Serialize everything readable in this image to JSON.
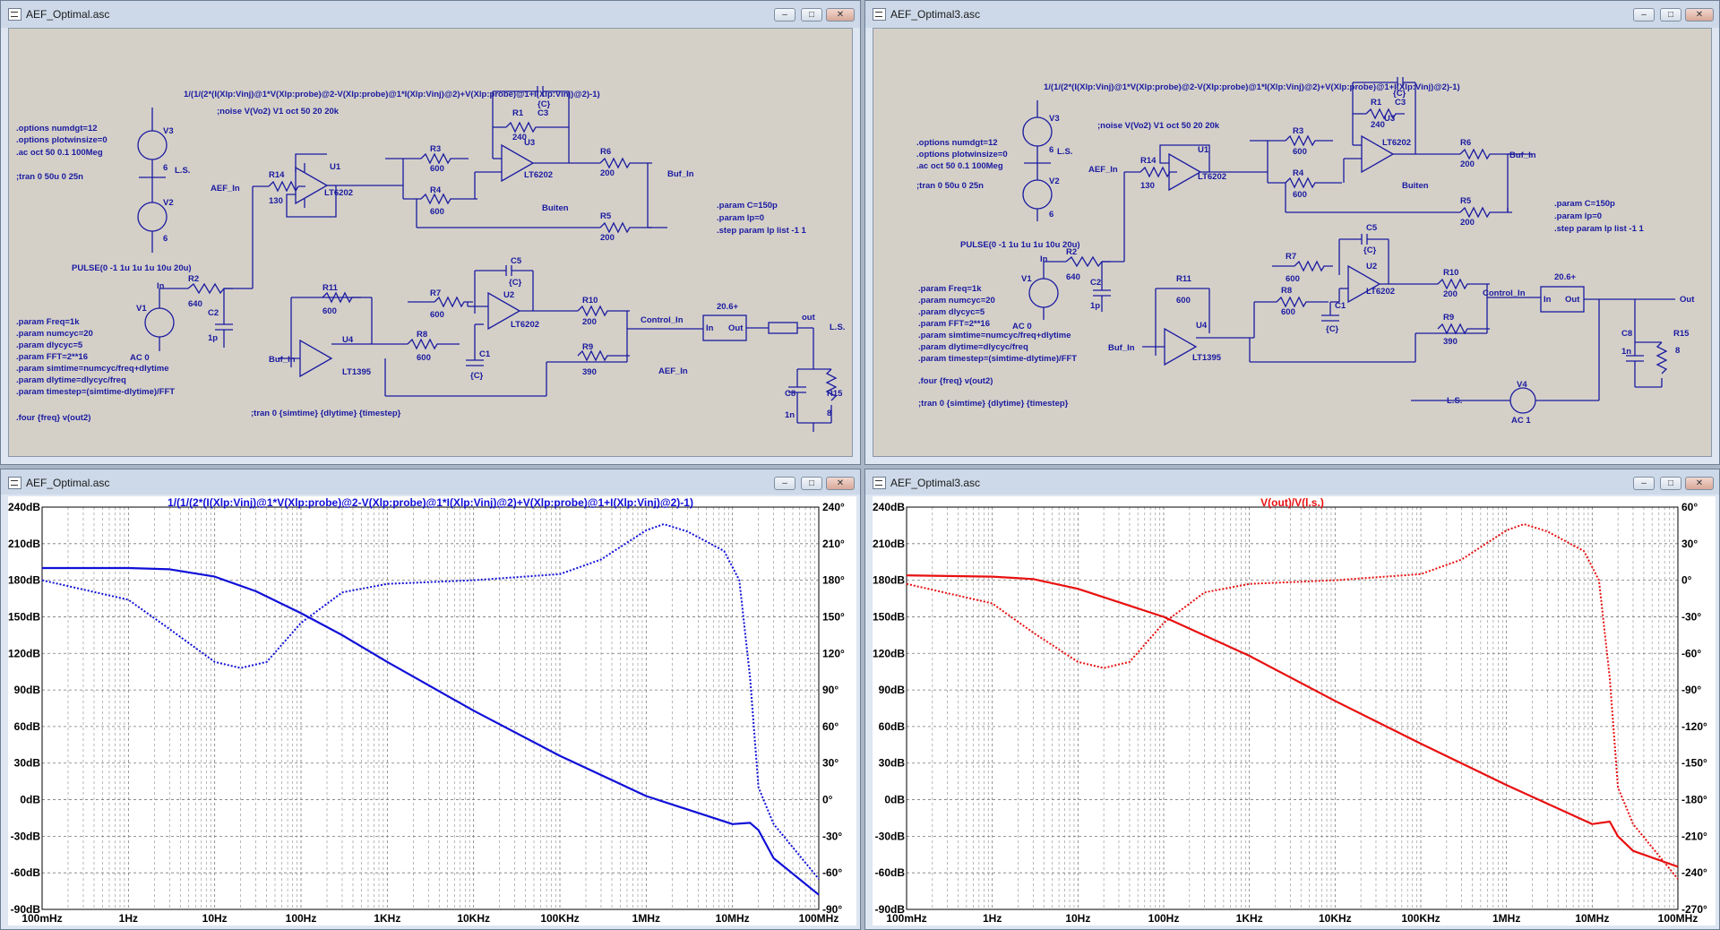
{
  "windows": {
    "sch1": {
      "title": "AEF_Optimal.asc"
    },
    "sch2": {
      "title": "AEF_Optimal3.asc"
    },
    "plot1": {
      "title": "AEF_Optimal.asc"
    },
    "plot2": {
      "title": "AEF_Optimal3.asc"
    }
  },
  "window_buttons": {
    "minimize": "–",
    "maximize": "□",
    "close": "✕"
  },
  "schematic1": {
    "probe_expr": "1/(1/(2*(I(Xlp:Vinj)@1*V(Xlp:probe)@2-V(Xlp:probe)@1*I(Xlp:Vinj)@2)+V(Xlp:probe)@1+I(Xlp:Vinj)@2)-1)",
    "options": [
      ".options numdgt=12",
      ".options plotwinsize=0",
      ".ac oct 50 0.1 100Meg"
    ],
    "tran_comment": ";tran 0 50u 0 25n",
    "noise_comment": ";noise V(Vo2) V1 oct 50 20 20k",
    "params_right": [
      ".param C=150p",
      ".param lp=0",
      ".step param lp list -1 1"
    ],
    "params_left": [
      ".param Freq=1k",
      ".param numcyc=20",
      ".param dlycyc=5",
      ".param FFT=2**16",
      ".param simtime=numcyc/freq+dlytime",
      ".param dlytime=dlycyc/freq",
      ".param timestep=(simtime-dlytime)/FFT"
    ],
    "four": ".four {freq} v(out2)",
    "tran2": ";tran 0 {simtime} {dlytime} {timestep}",
    "pulse": "PULSE(0 -1 1u 1u 1u 10u 20u)",
    "ac": "AC 0",
    "labels": {
      "v3": "V3",
      "v2": "V2",
      "v1": "V1",
      "six_a": "6",
      "six_b": "6",
      "ls": "L.S.",
      "aef_in": "AEF_In",
      "r14": "R14",
      "r14v": "130",
      "u1": "U1",
      "lt6202": "LT6202",
      "r3": "R3",
      "r3v": "600",
      "r4": "R4",
      "r4v": "600",
      "r1": "R1",
      "r1v": "240",
      "c3": "C3",
      "cv": "{C}",
      "u3": "U3",
      "r6": "R6",
      "r6v": "200",
      "r5": "R5",
      "r5v": "200",
      "buiten": "Buiten",
      "buf_in": "Buf_In",
      "in": "In",
      "r2": "R2",
      "r2v": "640",
      "c2": "C2",
      "c2v": "1p",
      "r11": "R11",
      "r11v": "600",
      "u4": "U4",
      "lt1395": "LT1395",
      "r8": "R8",
      "r8v": "600",
      "c1": "C1",
      "r7": "R7",
      "r7v": "600",
      "c5": "C5",
      "u2": "U2",
      "r10": "R10",
      "r10v": "200",
      "r9": "R9",
      "r9v": "390",
      "control_in": "Control_In",
      "blk_val": "20.6+",
      "blk_in": "In",
      "blk_out": "Out",
      "out": "out",
      "aef_in2": "AEF_In",
      "c8": "C8",
      "c8v": "1n",
      "r15": "R15",
      "r15v": "8"
    }
  },
  "schematic2": {
    "probe_expr": "1/(1/(2*(I(Xlp:Vinj)@1*V(Xlp:probe)@2-V(Xlp:probe)@1*I(Xlp:Vinj)@2)+V(Xlp:probe)@1+I(Xlp:Vinj)@2)-1)",
    "options": [
      ".options numdgt=12",
      ".options plotwinsize=0",
      ".ac oct 50 0.1 100Meg"
    ],
    "tran_comment": ";tran 0 50u 0 25n",
    "noise_comment": ";noise V(Vo2) V1 oct 50 20 20k",
    "params_right": [
      ".param C=150p",
      ".param lp=0",
      ".step param lp list -1 1"
    ],
    "params_left": [
      ".param Freq=1k",
      ".param numcyc=20",
      ".param dlycyc=5",
      ".param FFT=2**16",
      ".param simtime=numcyc/freq+dlytime",
      ".param dlytime=dlycyc/freq",
      ".param timestep=(simtime-dlytime)/FFT"
    ],
    "four": ".four {freq} v(out2)",
    "tran2": ";tran 0 {simtime} {dlytime} {timestep}",
    "pulse": "PULSE(0 -1 1u 1u 1u 10u 20u)",
    "ac0": "AC 0",
    "ac1": "AC 1",
    "labels": {
      "v3": "V3",
      "v2": "V2",
      "v1": "V1",
      "v4": "V4",
      "six": "6",
      "ls": "L.S.",
      "aef_in": "AEF_In",
      "r14": "R14",
      "r14v": "130",
      "u1": "U1",
      "lt6202": "LT6202",
      "r3": "R3",
      "r3v": "600",
      "r4": "R4",
      "r4v": "600",
      "r1": "R1",
      "r1v": "240",
      "c3": "C3",
      "cv": "{C}",
      "u3": "U3",
      "r6": "R6",
      "r6v": "200",
      "r5": "R5",
      "r5v": "200",
      "buiten": "Buiten",
      "buf_in": "Buf_In",
      "in": "In",
      "r2": "R2",
      "r2v": "640",
      "c2": "C2",
      "c2v": "1p",
      "r11": "R11",
      "r11v": "600",
      "u4": "U4",
      "lt1395": "LT1395",
      "r8": "R8",
      "r8v": "600",
      "c1": "C1",
      "r7": "R7",
      "r7v": "600",
      "c5": "C5",
      "u2": "U2",
      "r10": "R10",
      "r10v": "200",
      "r9": "R9",
      "r9v": "390",
      "control_in": "Control_In",
      "blk_val": "20.6+",
      "blk_in": "In",
      "blk_out": "Out",
      "out": "Out",
      "c8": "C8",
      "c8v": "1n",
      "r15": "R15",
      "r15v": "8"
    }
  },
  "colors": {
    "plot1": "#1010d8",
    "plot2": "#e81010"
  },
  "chart_data": [
    {
      "type": "line",
      "title": "1/(1/(2*(I(Xlp:Vinj)@1*V(Xlp:probe)@2-V(Xlp:probe)@1*I(Xlp:Vinj)@2)+V(Xlp:probe)@1+I(Xlp:Vinj)@2)-1)",
      "x_scale": "log",
      "xlim": [
        0.1,
        100000000
      ],
      "x_ticks": [
        "100mHz",
        "1Hz",
        "10Hz",
        "100Hz",
        "1KHz",
        "10KHz",
        "100KHz",
        "1MHz",
        "10MHz",
        "100MHz"
      ],
      "ylim": [
        -90,
        240
      ],
      "y_ticks": [
        "240dB",
        "210dB",
        "180dB",
        "150dB",
        "120dB",
        "90dB",
        "60dB",
        "30dB",
        "0dB",
        "-30dB",
        "-60dB",
        "-90dB"
      ],
      "y2lim": [
        -90,
        240
      ],
      "y2_ticks": [
        "240°",
        "210°",
        "180°",
        "150°",
        "120°",
        "90°",
        "60°",
        "30°",
        "0°",
        "-30°",
        "-60°",
        "-90°"
      ],
      "grid": true,
      "series": [
        {
          "style": "solid",
          "axis": "left",
          "x": [
            0.1,
            1,
            3,
            10,
            30,
            100,
            300,
            1000,
            10000,
            100000,
            1000000,
            10000000,
            16000000,
            20000000,
            30000000,
            100000000
          ],
          "values": [
            190,
            190,
            189,
            183,
            171,
            153,
            135,
            113,
            73,
            36,
            3,
            -20,
            -19,
            -25,
            -48,
            -78
          ]
        },
        {
          "style": "dotted",
          "axis": "right",
          "x": [
            0.1,
            1,
            3,
            10,
            20,
            40,
            100,
            300,
            1000,
            10000,
            100000,
            300000,
            1000000,
            1600000,
            3000000,
            8000000,
            12000000,
            16000000,
            20000000,
            30000000,
            100000000
          ],
          "values": [
            180,
            164,
            140,
            113,
            108,
            113,
            145,
            170,
            177,
            180,
            185,
            197,
            221,
            226,
            220,
            204,
            180,
            100,
            10,
            -20,
            -65
          ]
        }
      ]
    },
    {
      "type": "line",
      "title": "V(out)/V(l.s.)",
      "x_scale": "log",
      "xlim": [
        0.1,
        100000000
      ],
      "x_ticks": [
        "100mHz",
        "1Hz",
        "10Hz",
        "100Hz",
        "1KHz",
        "10KHz",
        "100KHz",
        "1MHz",
        "10MHz",
        "100MHz"
      ],
      "ylim": [
        -90,
        240
      ],
      "y_ticks": [
        "240dB",
        "210dB",
        "180dB",
        "150dB",
        "120dB",
        "90dB",
        "60dB",
        "30dB",
        "0dB",
        "-30dB",
        "-60dB",
        "-90dB"
      ],
      "y2lim": [
        -270,
        60
      ],
      "y2_ticks": [
        "60°",
        "30°",
        "0°",
        "-30°",
        "-60°",
        "-90°",
        "-120°",
        "-150°",
        "-180°",
        "-210°",
        "-240°",
        "-270°"
      ],
      "grid": true,
      "series": [
        {
          "style": "solid",
          "axis": "left",
          "x": [
            0.1,
            1,
            3,
            10,
            100,
            1000,
            10000,
            100000,
            1000000,
            10000000,
            16000000,
            20000000,
            30000000,
            100000000
          ],
          "values": [
            184,
            183,
            181,
            173,
            150,
            118,
            81,
            46,
            12,
            -20,
            -18,
            -30,
            -42,
            -55
          ]
        },
        {
          "style": "dotted",
          "axis": "right",
          "x": [
            0.1,
            1,
            3,
            10,
            20,
            40,
            100,
            300,
            1000,
            10000,
            100000,
            300000,
            1000000,
            1600000,
            3000000,
            8000000,
            12000000,
            16000000,
            20000000,
            30000000,
            100000000
          ],
          "values": [
            -3,
            -19,
            -43,
            -67,
            -72,
            -67,
            -35,
            -10,
            -3,
            0,
            5,
            17,
            41,
            46,
            40,
            24,
            0,
            -80,
            -170,
            -200,
            -245
          ]
        }
      ]
    }
  ]
}
